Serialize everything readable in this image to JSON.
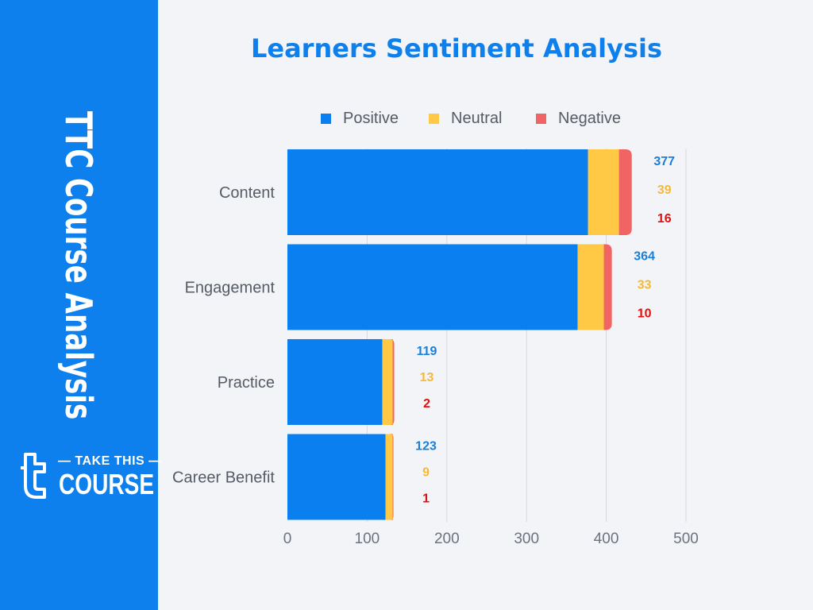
{
  "sidebar": {
    "title": "TTC Course Analysis",
    "logo_text_top": "TAKE THIS",
    "logo_text_bottom": "COURSE",
    "logo_icon": "t-icon",
    "background_color": "#0d80ee"
  },
  "chart_data": {
    "type": "bar",
    "orientation": "horizontal",
    "stacked": true,
    "title": "Learners Sentiment Analysis",
    "categories": [
      "Content",
      "Engagement",
      "Practice",
      "Career Benefit"
    ],
    "series": [
      {
        "name": "Positive",
        "color": "#0a7ff0",
        "label_color": "#1a7fd8",
        "values": [
          377,
          364,
          119,
          123
        ]
      },
      {
        "name": "Neutral",
        "color": "#ffc845",
        "label_color": "#f5b93a",
        "values": [
          39,
          33,
          13,
          9
        ]
      },
      {
        "name": "Negative",
        "color": "#f06464",
        "label_color": "#e01010",
        "values": [
          16,
          10,
          2,
          1
        ]
      }
    ],
    "xticks": [
      "0",
      "100",
      "200",
      "300",
      "400",
      "500"
    ],
    "xlim": [
      0,
      500
    ],
    "grid": true,
    "legend": "top",
    "xlabel": "",
    "ylabel": ""
  }
}
